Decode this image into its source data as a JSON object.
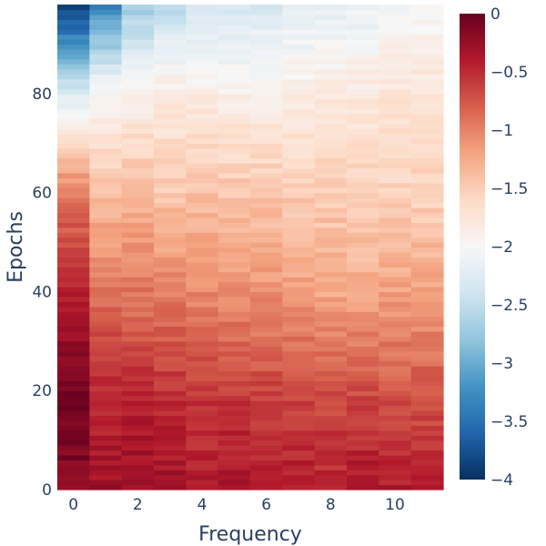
{
  "chart_data": {
    "type": "heatmap",
    "title": "",
    "xlabel": "Frequency",
    "ylabel": "Epochs",
    "x_range": [
      -0.5,
      11.5
    ],
    "y_range": [
      0,
      98
    ],
    "x_ticks": [
      0,
      2,
      4,
      6,
      8,
      10
    ],
    "y_ticks": [
      0,
      20,
      40,
      60,
      80
    ],
    "n_frequencies": 12,
    "n_epochs": 98,
    "colorscale": "RdBu",
    "colorbar": {
      "min": -4,
      "max": 0,
      "ticks": [
        0,
        -0.5,
        -1,
        -1.5,
        -2,
        -2.5,
        -3,
        -3.5,
        -4
      ],
      "tick_labels": [
        "0",
        "−0.5",
        "−1",
        "−1.5",
        "−2",
        "−2.5",
        "−3",
        "−3.5",
        "−4"
      ]
    },
    "grid": false,
    "epoch_anchors": [
      0,
      20,
      40,
      60,
      80,
      97
    ],
    "values_by_frequency_at_anchors": [
      [
        -0.15,
        -0.1,
        -0.45,
        -0.95,
        -2.3,
        -3.9
      ],
      [
        -0.3,
        -0.5,
        -0.9,
        -1.4,
        -2.0,
        -3.3
      ],
      [
        -0.25,
        -0.5,
        -0.95,
        -1.35,
        -1.9,
        -2.7
      ],
      [
        -0.3,
        -0.55,
        -1.0,
        -1.45,
        -1.85,
        -2.5
      ],
      [
        -0.4,
        -0.6,
        -1.05,
        -1.4,
        -1.85,
        -2.35
      ],
      [
        -0.35,
        -0.6,
        -1.1,
        -1.45,
        -1.9,
        -2.3
      ],
      [
        -0.45,
        -0.65,
        -1.1,
        -1.45,
        -1.9,
        -2.3
      ],
      [
        -0.4,
        -0.65,
        -1.2,
        -1.5,
        -1.85,
        -2.25
      ],
      [
        -0.45,
        -0.7,
        -1.25,
        -1.5,
        -1.8,
        -2.2
      ],
      [
        -0.35,
        -0.7,
        -1.25,
        -1.55,
        -1.8,
        -2.15
      ],
      [
        -0.4,
        -0.75,
        -1.2,
        -1.55,
        -1.75,
        -2.05
      ],
      [
        -0.45,
        -0.75,
        -1.2,
        -1.55,
        -1.75,
        -2.05
      ]
    ]
  }
}
